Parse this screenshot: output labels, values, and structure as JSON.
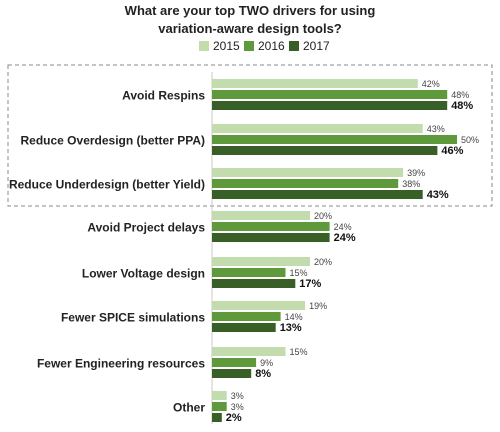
{
  "chart_data": {
    "type": "bar",
    "orientation": "horizontal",
    "title_line1": "What are your top TWO drivers for using",
    "title_line2": "variation-aware design tools?",
    "categories": [
      "Avoid Respins",
      "Reduce Overdesign (better PPA)",
      "Reduce Underdesign (better Yield)",
      "Avoid Project delays",
      "Lower Voltage design",
      "Fewer SPICE simulations",
      "Fewer Engineering resources",
      "Other"
    ],
    "series": [
      {
        "name": "2015",
        "color": "#c3dcae",
        "values": [
          42,
          43,
          39,
          20,
          20,
          19,
          15,
          3
        ]
      },
      {
        "name": "2016",
        "color": "#5e9a3c",
        "values": [
          48,
          50,
          38,
          24,
          15,
          14,
          9,
          3
        ]
      },
      {
        "name": "2017",
        "color": "#375f26",
        "values": [
          48,
          46,
          43,
          24,
          17,
          13,
          8,
          2
        ]
      }
    ],
    "value_suffix": "%",
    "highlighted_categories": [
      "Avoid Respins",
      "Reduce Overdesign (better PPA)",
      "Reduce Underdesign (better Yield)"
    ],
    "legend_position": "top",
    "grid": false
  }
}
